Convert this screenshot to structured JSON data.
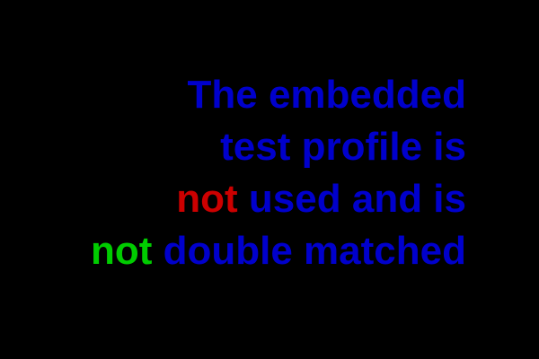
{
  "colors": {
    "background": "#000000",
    "primary_text": "#0000cc",
    "warn_word": "#cc0000",
    "ok_word": "#00cc00"
  },
  "message": {
    "line1": "The embedded",
    "line2": "test profile is",
    "line3_not": "not",
    "line3_rest": "used and is",
    "line4_not": "not",
    "line4_rest": "double matched"
  }
}
